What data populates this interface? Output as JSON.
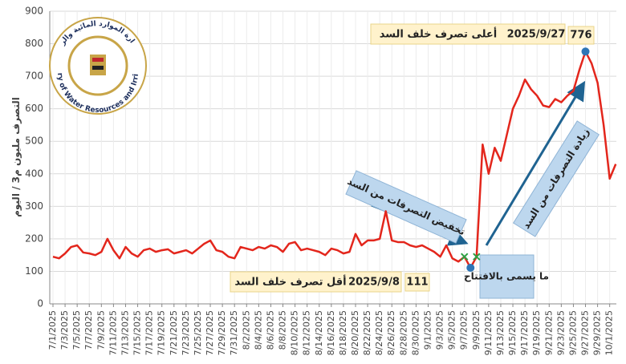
{
  "chart_data": {
    "type": "line",
    "y_label": "التصرف مليون م3 / اليوم",
    "categories": [
      "7/1/2025",
      null,
      "7/3/2025",
      null,
      "7/5/2025",
      null,
      "7/7/2025",
      null,
      "7/9/2025",
      null,
      "7/11/2025",
      null,
      "7/13/2025",
      null,
      "7/15/2025",
      null,
      "7/17/2025",
      null,
      "7/19/2025",
      null,
      "7/21/2025",
      null,
      "7/23/2025",
      null,
      "7/25/2025",
      null,
      "7/27/2025",
      null,
      "7/29/2025",
      null,
      "7/31/2025",
      null,
      "8/2/2025",
      null,
      "8/4/2025",
      null,
      "8/6/2025",
      null,
      "8/8/2025",
      null,
      "8/10/2025",
      null,
      "8/12/2025",
      null,
      "8/14/2025",
      null,
      "8/16/2025",
      null,
      "8/18/2025",
      null,
      "8/20/2025",
      null,
      "8/22/2025",
      null,
      "8/24/2025",
      null,
      "8/26/2025",
      null,
      "8/28/2025",
      null,
      "8/30/2025",
      null,
      "9/1/2025",
      null,
      "9/3/2025",
      null,
      "9/5/2025",
      null,
      "9/7/2025",
      null,
      "9/9/2025",
      null,
      "9/11/2025",
      null,
      "9/13/2025",
      null,
      "9/15/2025",
      null,
      "9/17/2025",
      null,
      "9/19/2025",
      null,
      "9/21/2025",
      null,
      "9/23/2025",
      null,
      "9/25/2025",
      null,
      "9/27/2025",
      null,
      "9/29/2025",
      null,
      "10/1/2025",
      null
    ],
    "series": [
      {
        "name": "التصرف",
        "color": "#e3261c",
        "values": [
          145,
          140,
          155,
          175,
          180,
          158,
          155,
          150,
          160,
          200,
          165,
          140,
          175,
          155,
          145,
          165,
          170,
          160,
          165,
          168,
          155,
          160,
          165,
          155,
          170,
          185,
          195,
          165,
          160,
          145,
          140,
          175,
          170,
          165,
          175,
          170,
          180,
          175,
          160,
          185,
          190,
          165,
          170,
          165,
          160,
          150,
          170,
          165,
          155,
          160,
          215,
          180,
          195,
          195,
          200,
          285,
          195,
          190,
          190,
          180,
          175,
          180,
          170,
          160,
          145,
          180,
          140,
          130,
          145,
          111,
          145,
          490,
          400,
          480,
          440,
          520,
          600,
          640,
          690,
          660,
          640,
          610,
          605,
          630,
          620,
          640,
          655,
          720,
          776,
          740,
          680,
          550,
          385,
          430
        ]
      }
    ],
    "ylim": [
      0,
      900
    ],
    "yticks": [
      0,
      100,
      200,
      300,
      400,
      500,
      600,
      700,
      800,
      900
    ],
    "grid": true,
    "annotations": [
      {
        "date": "2025/9/27",
        "text": "أعلى تصرف خلف السد",
        "value": 776
      },
      {
        "date": "2025/9/8",
        "text": "أقل تصرف خلف السد",
        "value": 111
      },
      {
        "text": "ما يسمى بالافتتاح"
      },
      {
        "text": "تخفيض التصرفات من السد"
      },
      {
        "text": "زيادة التصرفات من السد"
      }
    ],
    "logo": {
      "en": "Ministry of Water Resources and Irrigation",
      "ar": "وزارة الموارد المائية والري"
    }
  }
}
